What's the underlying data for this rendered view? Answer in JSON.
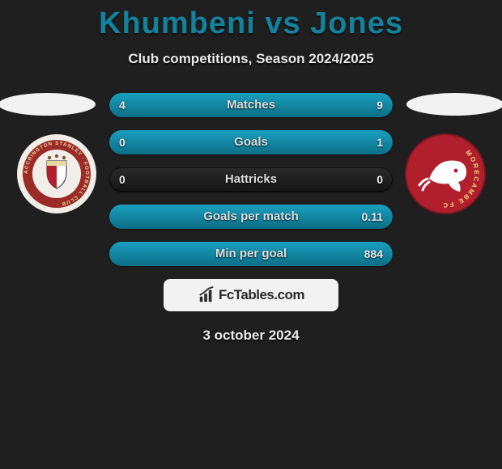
{
  "title": "Khumbeni vs Jones",
  "title_color": "#14829c",
  "subtitle": "Club competitions, Season 2024/2025",
  "date": "3 october 2024",
  "background_color": "#1f1f1f",
  "text_color": "#e9e9e9",
  "row_fill_gradient": [
    "#1aa0c0",
    "#0c6e86"
  ],
  "row_bg_gradient": [
    "#2b2b2b",
    "#151515"
  ],
  "rows": [
    {
      "label": "Matches",
      "left": "4",
      "right": "9",
      "leftPct": 31,
      "rightPct": 69
    },
    {
      "label": "Goals",
      "left": "0",
      "right": "1",
      "leftPct": 0,
      "rightPct": 100
    },
    {
      "label": "Hattricks",
      "left": "0",
      "right": "0",
      "leftPct": 0,
      "rightPct": 0
    },
    {
      "label": "Goals per match",
      "left": "",
      "right": "0.11",
      "leftPct": 0,
      "rightPct": 100
    },
    {
      "label": "Min per goal",
      "left": "",
      "right": "884",
      "leftPct": 0,
      "rightPct": 100
    }
  ],
  "badge_left": {
    "outer_bg": "#f1eee9",
    "ring_color": "#9b2b26",
    "ring_text": "ACCRINGTON STANLEY · FOOTBALL CLUB ·",
    "ring_text_color": "#e8d7a2"
  },
  "badge_right": {
    "outer_bg": "#b11f2d",
    "ring_text": "MORECAMBE FC",
    "ring_text_color": "#f6d77a",
    "shrimp_color": "#ffffff"
  },
  "brand": {
    "text": "FcTables.com",
    "box_bg": "#f2f2f2",
    "icon_color": "#2a2a2a"
  },
  "fontsize": {
    "title": 38,
    "subtitle": 17,
    "row_label": 15,
    "row_value": 14,
    "brand": 17,
    "date": 17
  }
}
